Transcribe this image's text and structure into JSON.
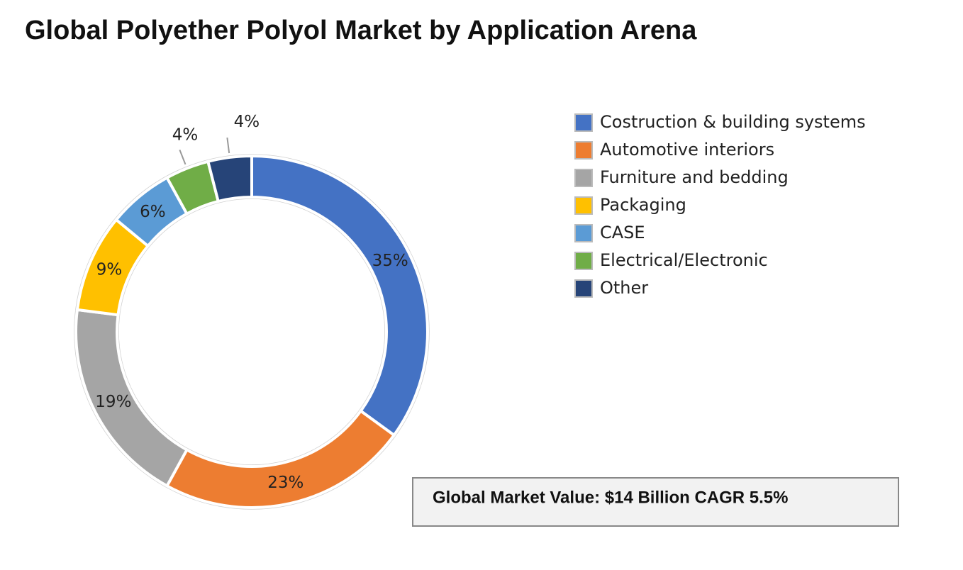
{
  "chart_data": {
    "type": "donut",
    "title": "Global Polyether Polyol Market by Application Arena",
    "categories": [
      "Costruction & building systems",
      "Automotive interiors",
      "Furniture and bedding",
      "Packaging",
      "CASE",
      "Electrical/Electronic",
      "Other"
    ],
    "values": [
      35,
      23,
      19,
      9,
      6,
      4,
      4
    ],
    "value_labels": [
      "35%",
      "23%",
      "19%",
      "9%",
      "6%",
      "4%",
      "4%"
    ],
    "colors": [
      "#4472c4",
      "#ed7d31",
      "#a5a5a5",
      "#ffc000",
      "#5b9bd5",
      "#70ad47",
      "#264478"
    ],
    "legend": "right",
    "annotation": "Global Market Value: $14 Billion CAGR 5.5%"
  }
}
